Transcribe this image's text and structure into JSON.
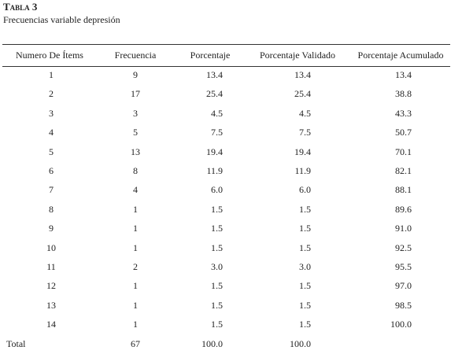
{
  "header": {
    "title": "Tabla 3",
    "subtitle": "Frecuencias variable depresión"
  },
  "table": {
    "columns": [
      "Numero De Ítems",
      "Frecuencia",
      "Porcentaje",
      "Porcentaje Validado",
      "Porcentaje Acumulado"
    ],
    "rows": [
      [
        "1",
        "9",
        "13.4",
        "13.4",
        "13.4"
      ],
      [
        "2",
        "17",
        "25.4",
        "25.4",
        "38.8"
      ],
      [
        "3",
        "3",
        "4.5",
        "4.5",
        "43.3"
      ],
      [
        "4",
        "5",
        "7.5",
        "7.5",
        "50.7"
      ],
      [
        "5",
        "13",
        "19.4",
        "19.4",
        "70.1"
      ],
      [
        "6",
        "8",
        "11.9",
        "11.9",
        "82.1"
      ],
      [
        "7",
        "4",
        "6.0",
        "6.0",
        "88.1"
      ],
      [
        "8",
        "1",
        "1.5",
        "1.5",
        "89.6"
      ],
      [
        "9",
        "1",
        "1.5",
        "1.5",
        "91.0"
      ],
      [
        "10",
        "1",
        "1.5",
        "1.5",
        "92.5"
      ],
      [
        "11",
        "2",
        "3.0",
        "3.0",
        "95.5"
      ],
      [
        "12",
        "1",
        "1.5",
        "1.5",
        "97.0"
      ],
      [
        "13",
        "1",
        "1.5",
        "1.5",
        "98.5"
      ],
      [
        "14",
        "1",
        "1.5",
        "1.5",
        "100.0"
      ]
    ],
    "total": [
      "Total",
      "67",
      "100.0",
      "100.0"
    ]
  }
}
